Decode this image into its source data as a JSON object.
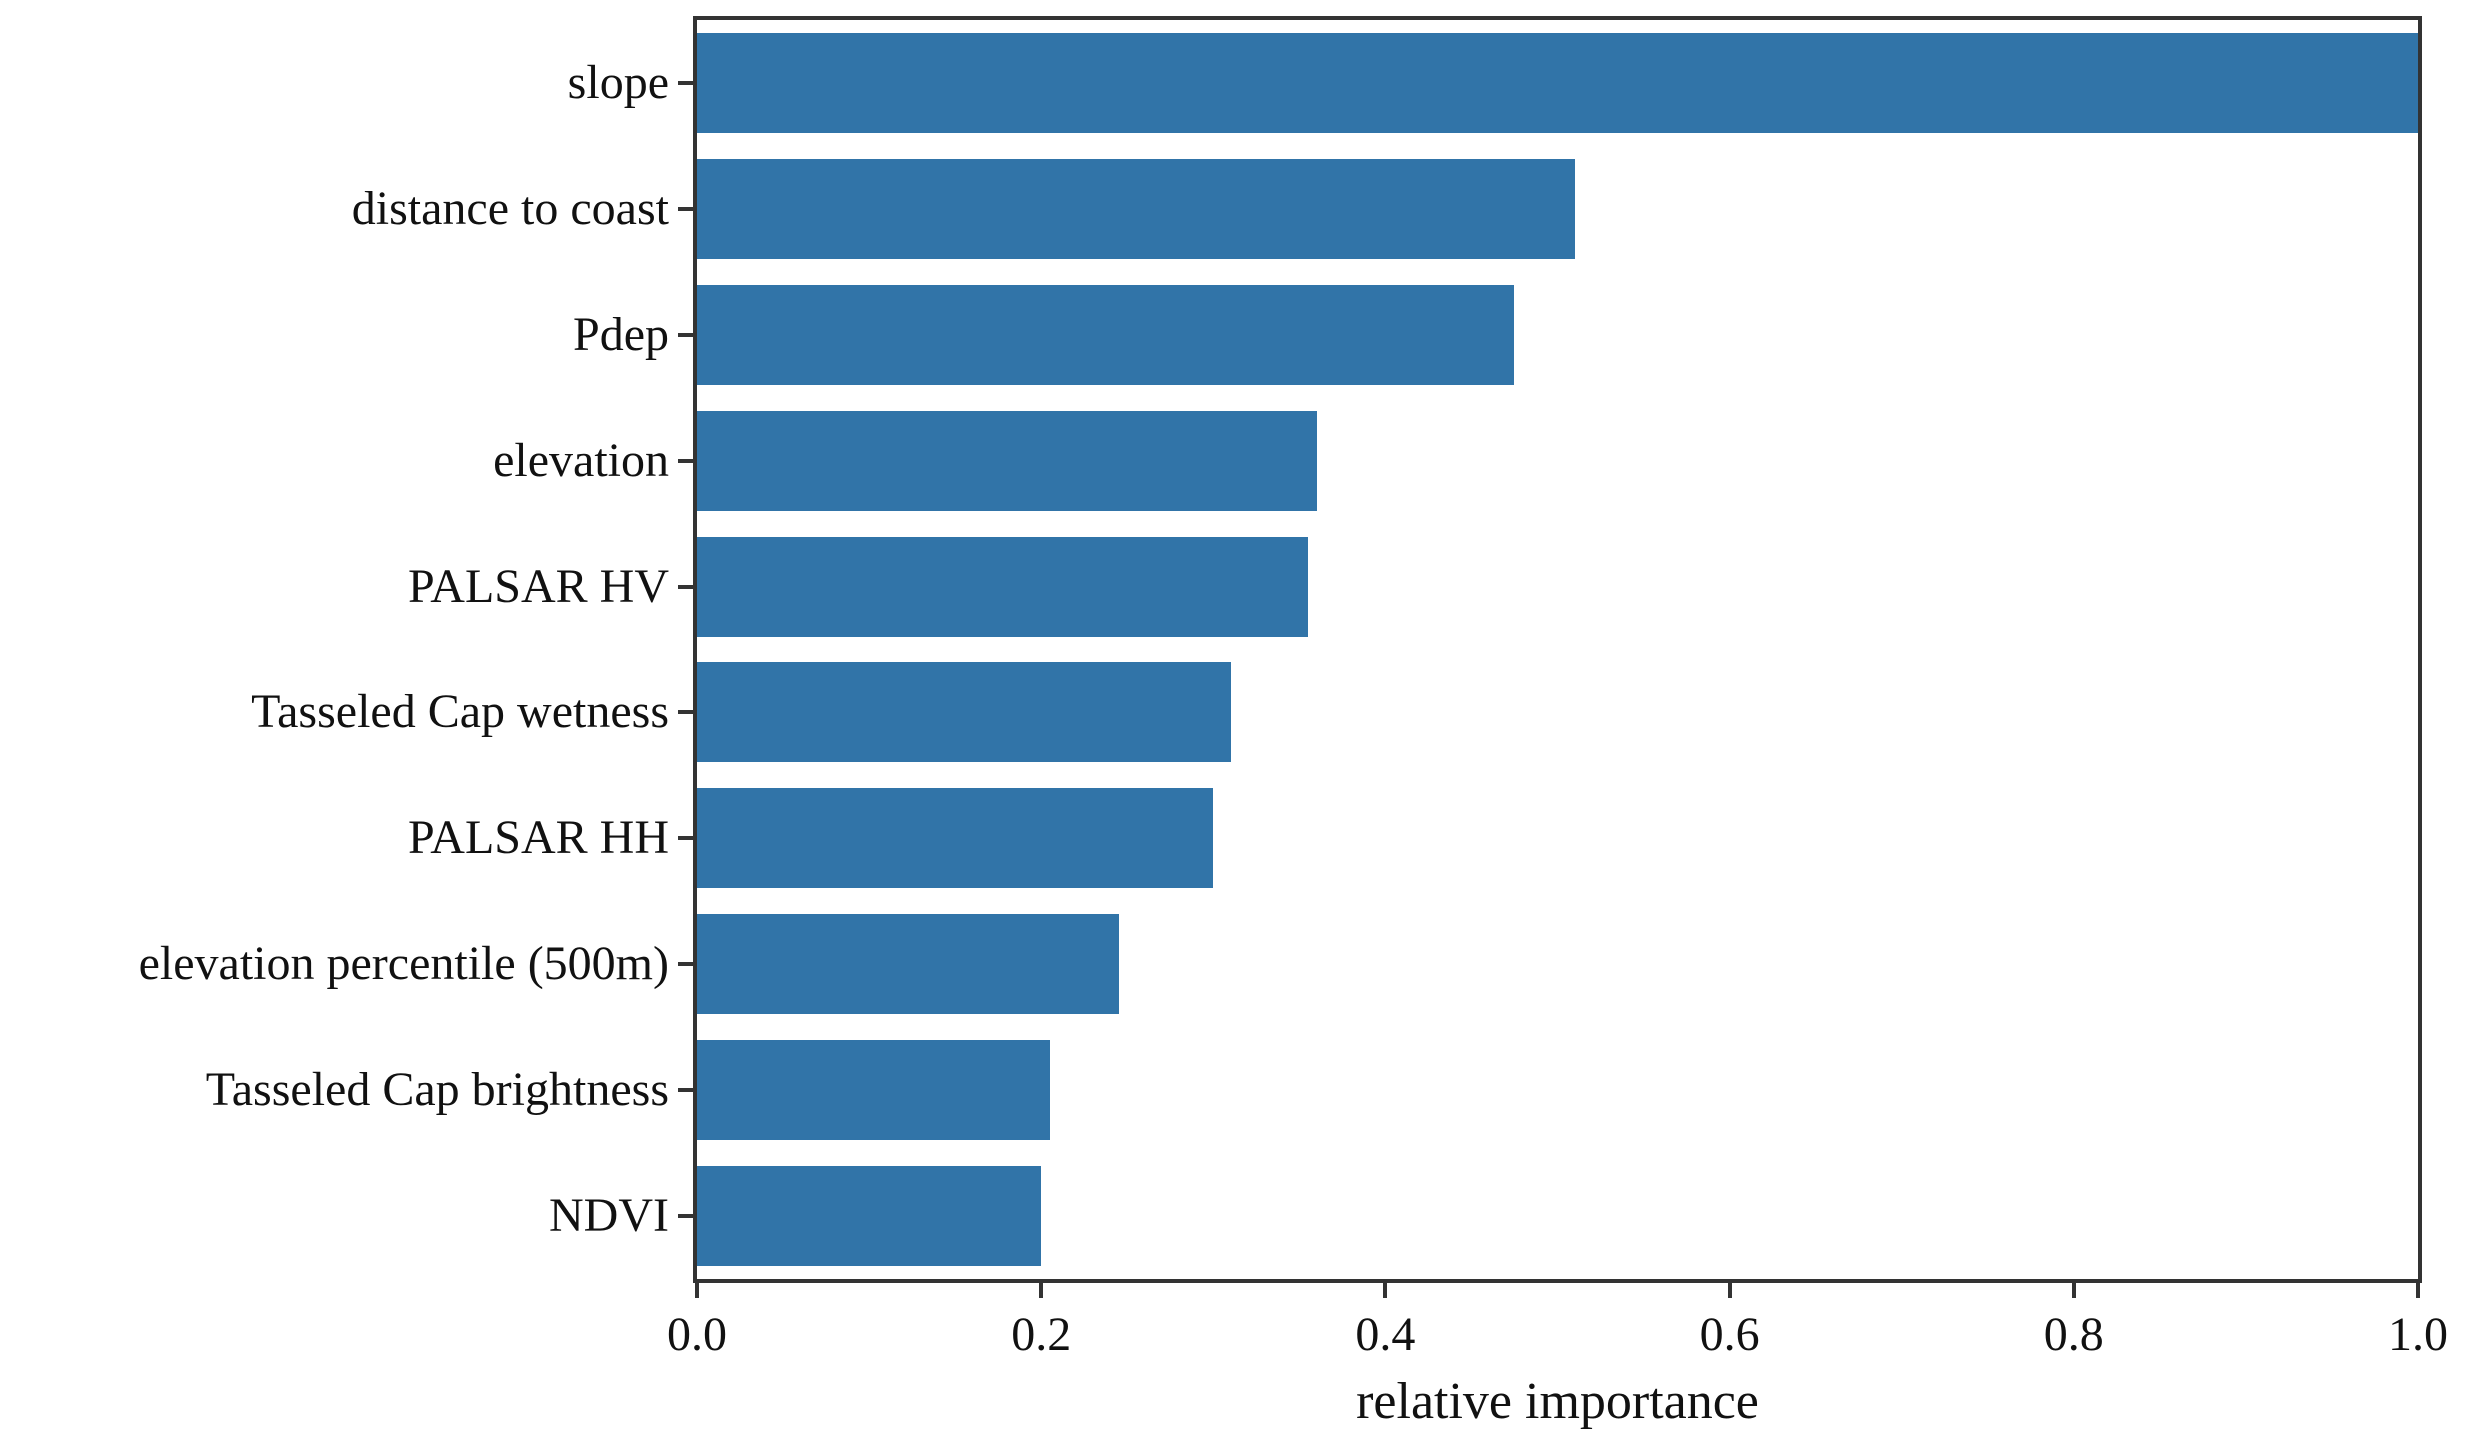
{
  "chart_data": {
    "type": "bar",
    "orientation": "horizontal",
    "title": "",
    "xlabel": "relative importance",
    "ylabel": "",
    "categories": [
      "slope",
      "distance to coast",
      "Pdep",
      "elevation",
      "PALSAR HV",
      "Tasseled Cap wetness",
      "PALSAR HH",
      "elevation percentile (500m)",
      "Tasseled Cap brightness",
      "NDVI"
    ],
    "values": [
      1.0,
      0.51,
      0.475,
      0.36,
      0.355,
      0.31,
      0.3,
      0.245,
      0.205,
      0.2
    ],
    "category_slugs": [
      "slope",
      "distance-to-coast",
      "pdep",
      "elevation",
      "palsar-hv",
      "tasseled-cap-wetness",
      "palsar-hh",
      "elevation-percentile-500m",
      "tasseled-cap-brightness",
      "ndvi"
    ],
    "xlim": [
      0.0,
      1.0
    ],
    "xticks": [
      "0.0",
      "0.2",
      "0.4",
      "0.6",
      "0.8",
      "1.0"
    ],
    "xtick_values": [
      0.0,
      0.2,
      0.4,
      0.6,
      0.8,
      1.0
    ],
    "grid": false,
    "legend": null,
    "colors": {
      "bar": "#3174a8",
      "spine": "#333333",
      "text": "#111111",
      "background": "#ffffff"
    }
  }
}
